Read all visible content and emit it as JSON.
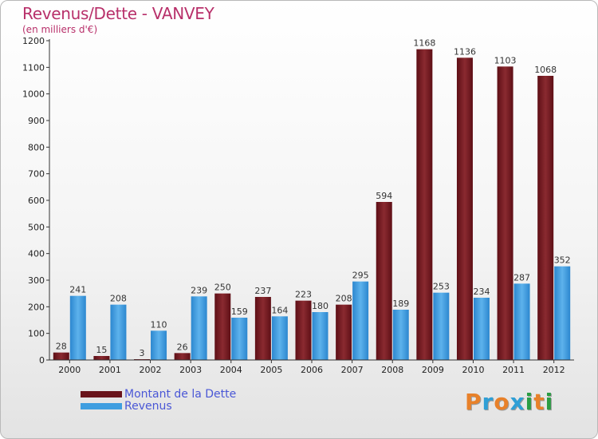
{
  "title": "Revenus/Dette - VANVEY",
  "subtitle": "(en milliers d'€)",
  "chart_data": {
    "type": "bar",
    "categories": [
      "2000",
      "2001",
      "2002",
      "2003",
      "2004",
      "2005",
      "2006",
      "2007",
      "2008",
      "2009",
      "2010",
      "2011",
      "2012"
    ],
    "series": [
      {
        "name": "Montant de la Dette",
        "color": "#7a1c22",
        "values": [
          28,
          15,
          3,
          26,
          250,
          237,
          223,
          208,
          594,
          1168,
          1136,
          1103,
          1068
        ]
      },
      {
        "name": "Revenus",
        "color": "#3f9ee0",
        "values": [
          241,
          208,
          110,
          239,
          159,
          164,
          180,
          295,
          189,
          253,
          234,
          287,
          352
        ]
      }
    ],
    "ylim": [
      0,
      1200
    ],
    "yticks": [
      0,
      100,
      200,
      300,
      400,
      500,
      600,
      700,
      800,
      900,
      1000,
      1100,
      1200
    ],
    "grid": false,
    "legend": "bottom-left"
  },
  "legend": {
    "debt_label": "Montant de la Dette",
    "revenue_label": "Revenus"
  },
  "logo": {
    "letters": [
      "P",
      "r",
      "o",
      "x",
      "i",
      "t",
      "i"
    ],
    "colors": [
      "#e8812a",
      "#2f9fd6",
      "#e8812a",
      "#2f9fd6",
      "#2a9d44",
      "#e8812a",
      "#2a9d44"
    ]
  }
}
